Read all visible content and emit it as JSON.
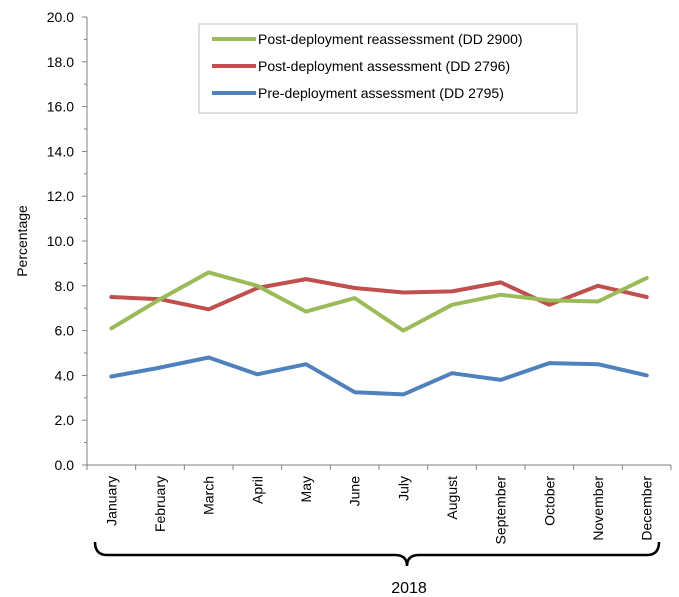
{
  "chart_data": {
    "type": "line",
    "title": "",
    "xlabel": "",
    "ylabel": "Percentage",
    "group_label": "2018",
    "ylim": [
      0,
      20
    ],
    "y_ticks": [
      "0.0",
      "2.0",
      "4.0",
      "6.0",
      "8.0",
      "10.0",
      "12.0",
      "14.0",
      "16.0",
      "18.0",
      "20.0"
    ],
    "grid": false,
    "legend_position": "top-center",
    "categories": [
      "January",
      "February",
      "March",
      "April",
      "May",
      "June",
      "July",
      "August",
      "September",
      "October",
      "November",
      "December"
    ],
    "series": [
      {
        "name": "Post-deployment reassessment (DD 2900)",
        "color": "#9BBB59",
        "values": [
          6.1,
          7.4,
          8.6,
          8.0,
          6.85,
          7.45,
          6.0,
          7.15,
          7.6,
          7.35,
          7.3,
          8.35
        ]
      },
      {
        "name": "Post-deployment assessment (DD 2796)",
        "color": "#C0504D",
        "values": [
          7.5,
          7.4,
          6.95,
          7.9,
          8.3,
          7.9,
          7.7,
          7.75,
          8.15,
          7.15,
          8.0,
          7.5
        ]
      },
      {
        "name": "Pre-deployment assessment (DD 2795)",
        "color": "#4F81BD",
        "values": [
          3.95,
          4.35,
          4.8,
          4.05,
          4.5,
          3.25,
          3.15,
          4.1,
          3.8,
          4.55,
          4.5,
          4.0
        ]
      }
    ]
  }
}
